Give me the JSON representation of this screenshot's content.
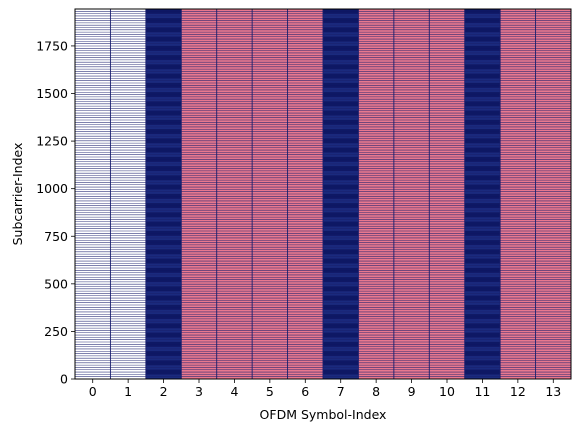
{
  "chart_data": {
    "type": "heatmap",
    "title": "",
    "xlabel": "OFDM Symbol-Index",
    "ylabel": "Subcarrier-Index",
    "xlim": [
      -0.5,
      13.5
    ],
    "ylim": [
      0,
      1944
    ],
    "x_ticks": [
      0,
      1,
      2,
      3,
      4,
      5,
      6,
      7,
      8,
      9,
      10,
      11,
      12,
      13
    ],
    "y_ticks": [
      0,
      250,
      500,
      750,
      1000,
      1250,
      1500,
      1750
    ],
    "columns": [
      {
        "symbol": 0,
        "kind": "empty"
      },
      {
        "symbol": 1,
        "kind": "empty"
      },
      {
        "symbol": 2,
        "kind": "pilot"
      },
      {
        "symbol": 3,
        "kind": "data"
      },
      {
        "symbol": 4,
        "kind": "data"
      },
      {
        "symbol": 5,
        "kind": "data"
      },
      {
        "symbol": 6,
        "kind": "data"
      },
      {
        "symbol": 7,
        "kind": "pilot"
      },
      {
        "symbol": 8,
        "kind": "data"
      },
      {
        "symbol": 9,
        "kind": "data"
      },
      {
        "symbol": 10,
        "kind": "data"
      },
      {
        "symbol": 11,
        "kind": "pilot"
      },
      {
        "symbol": 12,
        "kind": "data"
      },
      {
        "symbol": 13,
        "kind": "data"
      }
    ],
    "colors": {
      "empty": "#ffffff",
      "data": "#e8788e",
      "pilot": "#1a2a7e",
      "gridline": "#1a1f6e"
    },
    "grid": true
  }
}
